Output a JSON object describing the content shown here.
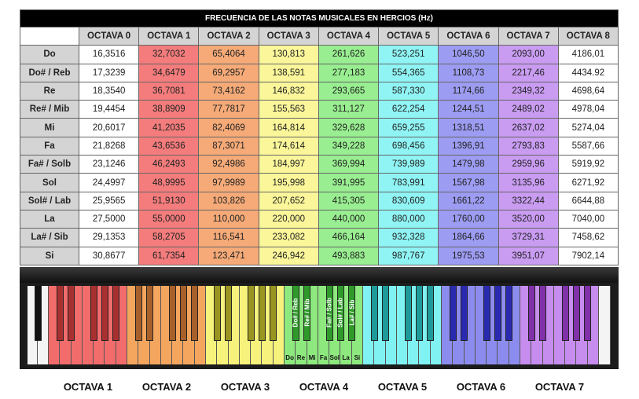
{
  "title": "FRECUENCIA DE LAS NOTAS MUSICALES EN HERCIOS (Hz)",
  "columns": [
    "OCTAVA 0",
    "OCTAVA 1",
    "OCTAVA 2",
    "OCTAVA 3",
    "OCTAVA 4",
    "OCTAVA 5",
    "OCTAVA 6",
    "OCTAVA 7",
    "OCTAVA 8"
  ],
  "column_colors": [
    "#ffffff",
    "#f47c7c",
    "#f5aa78",
    "#fbf69a",
    "#98ee90",
    "#90f4f4",
    "#9c9cf2",
    "#c99cf2",
    "#ffffff"
  ],
  "rows": [
    {
      "note": "Do",
      "values": [
        "16,3516",
        "32,7032",
        "65,4064",
        "130,813",
        "261,626",
        "523,251",
        "1046,50",
        "2093,00",
        "4186,01"
      ]
    },
    {
      "note": "Do# / Reb",
      "values": [
        "17,3239",
        "34,6479",
        "69,2957",
        "138,591",
        "277,183",
        "554,365",
        "1108,73",
        "2217,46",
        "4434.92"
      ]
    },
    {
      "note": "Re",
      "values": [
        "18,3540",
        "36,7081",
        "73,4162",
        "146,832",
        "293,665",
        "587,330",
        "1174,66",
        "2349,32",
        "4698,64"
      ]
    },
    {
      "note": "Re# / Mib",
      "values": [
        "19,4454",
        "38,8909",
        "77,7817",
        "155,563",
        "311,127",
        "622,254",
        "1244,51",
        "2489,02",
        "4978,04"
      ]
    },
    {
      "note": "Mi",
      "values": [
        "20,6017",
        "41,2035",
        "82,4069",
        "164,814",
        "329,628",
        "659,255",
        "1318,51",
        "2637,02",
        "5274,04"
      ]
    },
    {
      "note": "Fa",
      "values": [
        "21,8268",
        "43,6536",
        "87,3071",
        "174,614",
        "349,228",
        "698,456",
        "1396,91",
        "2793,83",
        "5587,66"
      ]
    },
    {
      "note": "Fa# / Solb",
      "values": [
        "23,1246",
        "46,2493",
        "92,4986",
        "184,997",
        "369,994",
        "739,989",
        "1479,98",
        "2959,96",
        "5919,92"
      ]
    },
    {
      "note": "Sol",
      "values": [
        "24,4997",
        "48,9995",
        "97,9989",
        "195,998",
        "391,995",
        "783,991",
        "1567,98",
        "3135,96",
        "6271,92"
      ]
    },
    {
      "note": "Sol# / Lab",
      "values": [
        "25,9565",
        "51,9130",
        "103,826",
        "207,652",
        "415,305",
        "830,609",
        "1661,22",
        "3322,44",
        "6644,88"
      ]
    },
    {
      "note": "La",
      "values": [
        "27,5000",
        "55,0000",
        "110,000",
        "220,000",
        "440,000",
        "880,000",
        "1760,00",
        "3520,00",
        "7040,00"
      ]
    },
    {
      "note": "La# / Sib",
      "values": [
        "29,1353",
        "58,2705",
        "116,541",
        "233,082",
        "466,164",
        "932,328",
        "1864,66",
        "3729,31",
        "7458,62"
      ]
    },
    {
      "note": "Si",
      "values": [
        "30,8677",
        "61,7354",
        "123,471",
        "246,942",
        "493,883",
        "987,767",
        "1975,53",
        "3951,07",
        "7902,14"
      ]
    }
  ],
  "piano": {
    "octave_labels": [
      "OCTAVA 1",
      "OCTAVA 2",
      "OCTAVA 3",
      "OCTAVA 4",
      "OCTAVA 5",
      "OCTAVA 6",
      "OCTAVA 7"
    ],
    "white_colors": [
      "#f26c6c",
      "#f5a65e",
      "#f6f27c",
      "#8de87e",
      "#80f2f2",
      "#8c8cee",
      "#c68cee"
    ],
    "black_colors": [
      "#a83030",
      "#a8602a",
      "#9a9420",
      "#2f9a2a",
      "#1f9a9a",
      "#2a2ab0",
      "#8030a8"
    ],
    "white_note_labels": [
      "Do",
      "Re",
      "Mi",
      "Fa",
      "Sol",
      "La",
      "Si"
    ],
    "black_note_labels": [
      "Do# / Reb",
      "Re# / Mib",
      "Fa# / Solb",
      "Sol# / Lab",
      "La# / Sib"
    ],
    "labeled_octave": "OCTAVA 4"
  }
}
